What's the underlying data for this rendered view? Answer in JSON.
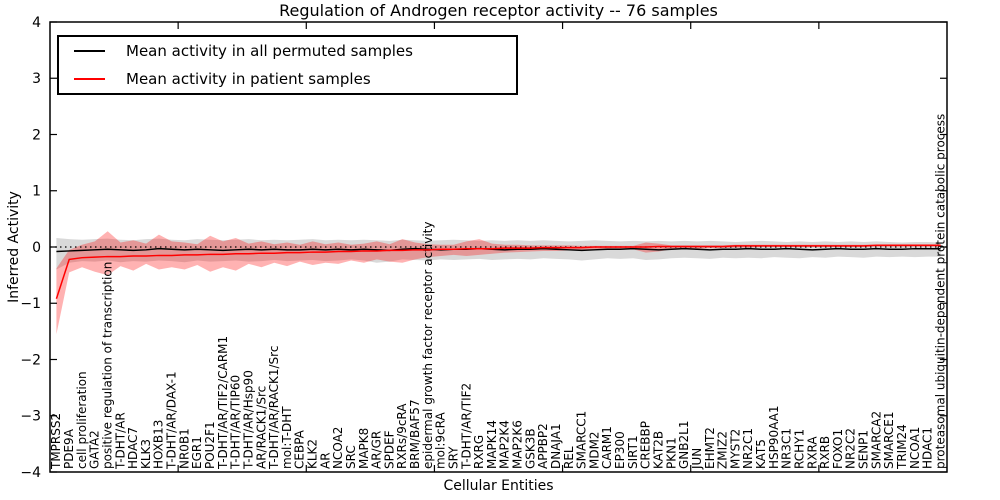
{
  "figure": {
    "title": "Regulation of Androgen receptor activity -- 76 samples",
    "xlabel": "Cellular Entities",
    "ylabel": "Inferred Activity"
  },
  "legend": {
    "items": [
      {
        "label": "Mean activity in all permuted samples",
        "color": "#000000"
      },
      {
        "label": "Mean activity in patient samples",
        "color": "#ff0000"
      }
    ]
  },
  "chart_data": {
    "type": "line",
    "title": "Regulation of Androgen receptor activity -- 76 samples",
    "xlabel": "Cellular Entities",
    "ylabel": "Inferred Activity",
    "ylim": [
      -4,
      4
    ],
    "yticks": [
      4,
      3,
      2,
      1,
      0,
      -1,
      -2,
      -3,
      -4
    ],
    "x_major_ticks": [
      10,
      20,
      30,
      40,
      50,
      60
    ],
    "grid": false,
    "legend_position": "upper left",
    "reference_line": {
      "y": 0,
      "style": "dotted",
      "color": "#000000"
    },
    "categories": [
      "TMPRSS2",
      "PDE9A",
      "cell proliferation",
      "GATA2",
      "positive regulation of transcription",
      "T-DHT/AR",
      "HDAC7",
      "KLK3",
      "HOXB13",
      "T-DHT/AR/DAX-1",
      "NR0B1",
      "EGR1",
      "POU2F1",
      "T-DHT/AR/TIF2/CARM1",
      "T-DHT/AR/TIP60",
      "T-DHT/AR/Hsp90",
      "AR/RACK1/Src",
      "T-DHT/AR/RACK1/Src",
      "mol:T-DHT",
      "CEBPA",
      "KLK2",
      "AR",
      "NCOA2",
      "SRC",
      "MAPK8",
      "AR/GR",
      "SPDEF",
      "RXRs/9cRA",
      "BRM/BAF57",
      "epidermal growth factor receptor activity",
      "mol:9cRA",
      "SRY",
      "T-DHT/AR/TIF2",
      "RXRG",
      "MAPK14",
      "MAP2K4",
      "MAP2K6",
      "GSK3B",
      "APPBP2",
      "DNAJA1",
      "REL",
      "SMARCC1",
      "MDM2",
      "CARM1",
      "EP300",
      "SIRT1",
      "CREBBP",
      "KAT2B",
      "PKN1",
      "GNB2L1",
      "JUN",
      "EHMT2",
      "ZMIZ2",
      "MYST2",
      "NR2C1",
      "KAT5",
      "HSP90AA1",
      "NR3C1",
      "RCHY1",
      "RXRA",
      "RXRB",
      "FOXO1",
      "NR2C2",
      "SENP1",
      "SMARCA2",
      "SMARCE1",
      "TRIM24",
      "NCOA1",
      "HDAC1",
      "proteasomal ubiquitin-dependent protein catabolic process"
    ],
    "series": [
      {
        "name": "Mean activity in all permuted samples",
        "color": "#000000",
        "values": [
          -0.08,
          -0.07,
          -0.06,
          -0.05,
          -0.04,
          -0.05,
          -0.06,
          -0.05,
          -0.03,
          -0.04,
          -0.05,
          -0.04,
          -0.05,
          -0.06,
          -0.05,
          -0.04,
          -0.05,
          -0.04,
          -0.05,
          -0.05,
          -0.04,
          -0.05,
          -0.04,
          -0.05,
          -0.04,
          -0.05,
          -0.06,
          -0.04,
          -0.03,
          -0.04,
          -0.05,
          -0.04,
          -0.04,
          -0.03,
          -0.04,
          -0.05,
          -0.04,
          -0.04,
          -0.03,
          -0.04,
          -0.05,
          -0.06,
          -0.05,
          -0.04,
          -0.04,
          -0.03,
          -0.04,
          -0.05,
          -0.04,
          -0.03,
          -0.04,
          -0.05,
          -0.04,
          -0.04,
          -0.03,
          -0.04,
          -0.04,
          -0.03,
          -0.04,
          -0.05,
          -0.04,
          -0.03,
          -0.04,
          -0.04,
          -0.03,
          -0.04,
          -0.04,
          -0.03,
          -0.03,
          -0.03
        ]
      },
      {
        "name": "Mean activity in patient samples",
        "color": "#ff0000",
        "values": [
          -0.92,
          -0.22,
          -0.19,
          -0.18,
          -0.17,
          -0.17,
          -0.16,
          -0.16,
          -0.15,
          -0.15,
          -0.14,
          -0.14,
          -0.13,
          -0.13,
          -0.12,
          -0.12,
          -0.11,
          -0.11,
          -0.1,
          -0.1,
          -0.09,
          -0.09,
          -0.08,
          -0.08,
          -0.07,
          -0.07,
          -0.06,
          -0.06,
          -0.05,
          -0.05,
          -0.04,
          -0.04,
          -0.03,
          -0.03,
          -0.03,
          -0.02,
          -0.02,
          -0.02,
          -0.01,
          -0.01,
          -0.01,
          -0.01,
          0.0,
          0.0,
          0.0,
          0.0,
          0.0,
          0.01,
          0.01,
          0.01,
          0.01,
          0.01,
          0.01,
          0.02,
          0.02,
          0.02,
          0.02,
          0.02,
          0.02,
          0.02,
          0.02,
          0.02,
          0.02,
          0.02,
          0.03,
          0.03,
          0.03,
          0.03,
          0.03,
          0.03
        ]
      }
    ],
    "bands": [
      {
        "name": "permuted",
        "series": "Mean activity in all permuted samples",
        "color": "#aaaaaa",
        "opacity": 0.45,
        "upper": [
          0.16,
          0.14,
          0.13,
          0.14,
          0.15,
          0.13,
          0.12,
          0.14,
          0.15,
          0.13,
          0.12,
          0.14,
          0.13,
          0.12,
          0.13,
          0.14,
          0.12,
          0.13,
          0.12,
          0.13,
          0.14,
          0.12,
          0.13,
          0.12,
          0.13,
          0.12,
          0.11,
          0.13,
          0.12,
          0.11,
          0.12,
          0.13,
          0.12,
          0.11,
          0.12,
          0.11,
          0.12,
          0.11,
          0.12,
          0.11,
          0.1,
          0.11,
          0.12,
          0.11,
          0.1,
          0.11,
          0.1,
          0.11,
          0.1,
          0.11,
          0.1,
          0.11,
          0.1,
          0.09,
          0.1,
          0.11,
          0.1,
          0.09,
          0.1,
          0.09,
          0.1,
          0.09,
          0.1,
          0.09,
          0.1,
          0.09,
          0.08,
          0.09,
          0.09,
          0.08
        ],
        "lower": [
          -0.4,
          -0.28,
          -0.25,
          -0.26,
          -0.24,
          -0.27,
          -0.25,
          -0.26,
          -0.24,
          -0.25,
          -0.27,
          -0.24,
          -0.26,
          -0.25,
          -0.24,
          -0.26,
          -0.25,
          -0.23,
          -0.25,
          -0.24,
          -0.23,
          -0.25,
          -0.24,
          -0.22,
          -0.24,
          -0.28,
          -0.26,
          -0.22,
          -0.23,
          -0.24,
          -0.22,
          -0.23,
          -0.22,
          -0.21,
          -0.23,
          -0.22,
          -0.21,
          -0.22,
          -0.2,
          -0.21,
          -0.22,
          -0.24,
          -0.22,
          -0.2,
          -0.21,
          -0.2,
          -0.23,
          -0.22,
          -0.2,
          -0.19,
          -0.2,
          -0.21,
          -0.19,
          -0.2,
          -0.19,
          -0.2,
          -0.18,
          -0.19,
          -0.2,
          -0.18,
          -0.19,
          -0.17,
          -0.18,
          -0.19,
          -0.17,
          -0.18,
          -0.17,
          -0.18,
          -0.17,
          -0.17
        ]
      },
      {
        "name": "patient",
        "series": "Mean activity in patient samples",
        "color": "#ff0000",
        "opacity": 0.3,
        "upper": [
          -0.38,
          -0.05,
          0.04,
          0.1,
          0.28,
          0.08,
          0.12,
          0.06,
          0.22,
          0.1,
          0.08,
          0.05,
          0.2,
          0.1,
          0.16,
          0.06,
          0.1,
          0.05,
          0.08,
          0.04,
          0.1,
          0.05,
          0.08,
          0.04,
          0.06,
          0.1,
          0.05,
          0.14,
          0.08,
          0.05,
          0.04,
          0.04,
          0.1,
          0.14,
          0.06,
          0.04,
          0.04,
          0.03,
          0.03,
          0.03,
          0.03,
          0.02,
          0.02,
          0.02,
          0.02,
          0.02,
          0.08,
          0.06,
          0.03,
          0.03,
          0.03,
          0.03,
          0.03,
          0.04,
          0.04,
          0.04,
          0.04,
          0.04,
          0.04,
          0.04,
          0.04,
          0.04,
          0.04,
          0.04,
          0.05,
          0.05,
          0.05,
          0.05,
          0.05,
          0.05
        ],
        "lower": [
          -1.55,
          -0.45,
          -0.36,
          -0.44,
          -0.5,
          -0.34,
          -0.42,
          -0.3,
          -0.4,
          -0.36,
          -0.4,
          -0.32,
          -0.44,
          -0.36,
          -0.42,
          -0.3,
          -0.36,
          -0.28,
          -0.34,
          -0.26,
          -0.32,
          -0.28,
          -0.3,
          -0.24,
          -0.28,
          -0.22,
          -0.26,
          -0.28,
          -0.22,
          -0.18,
          -0.16,
          -0.14,
          -0.16,
          -0.14,
          -0.12,
          -0.1,
          -0.09,
          -0.08,
          -0.07,
          -0.07,
          -0.06,
          -0.06,
          -0.05,
          -0.05,
          -0.04,
          -0.04,
          -0.1,
          -0.08,
          -0.04,
          -0.03,
          -0.03,
          -0.02,
          -0.02,
          -0.01,
          -0.01,
          0.0,
          0.0,
          0.0,
          0.0,
          0.0,
          0.0,
          0.0,
          0.0,
          0.0,
          0.01,
          0.01,
          0.01,
          0.01,
          0.01,
          0.01
        ]
      }
    ]
  }
}
